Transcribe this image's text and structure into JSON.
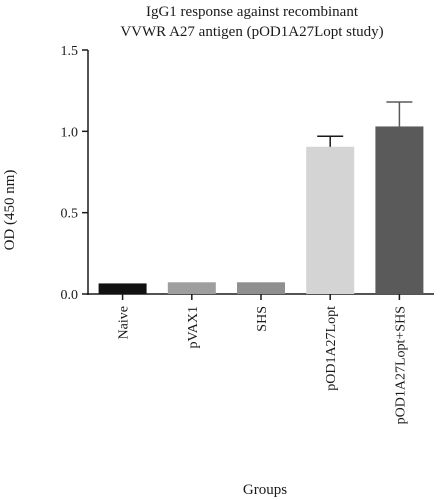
{
  "chart_data": {
    "type": "bar",
    "title": [
      "IgG1 response against recombinant",
      "VVWR A27 antigen (pOD1A27Lopt study)"
    ],
    "xlabel": "Groups",
    "ylabel": "OD (450 nm)",
    "ylim": [
      0,
      1.5
    ],
    "yticks": [
      "0.0",
      "0.5",
      "1.0",
      "1.5"
    ],
    "categories": [
      "Naive",
      "pVAX1",
      "SHS",
      "pOD1A27Lopt",
      "pOD1A27Lopt+SHS"
    ],
    "values": [
      0.065,
      0.072,
      0.072,
      0.905,
      1.03
    ],
    "errors": [
      0.003,
      0.003,
      0.003,
      0.065,
      0.15
    ],
    "colors": [
      "#111111",
      "#9e9e9e",
      "#8f8f8f",
      "#d4d4d4",
      "#5a5a5a"
    ],
    "grid": false
  }
}
